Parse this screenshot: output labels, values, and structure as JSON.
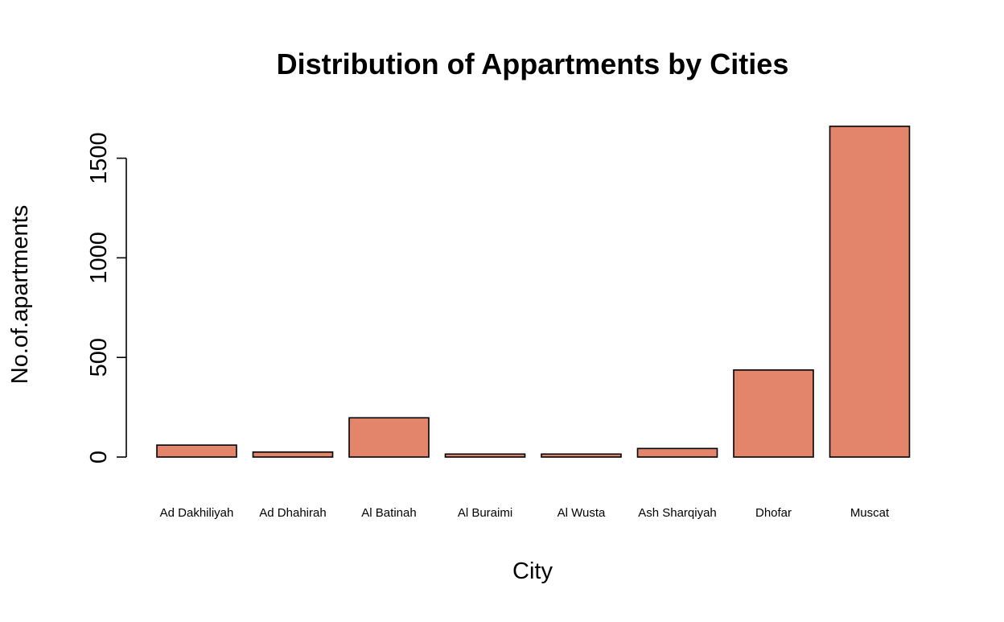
{
  "chart_data": {
    "type": "bar",
    "title": "Distribution of Appartments by Cities",
    "xlabel": "City",
    "ylabel": "No.of.apartments",
    "categories": [
      "Ad Dakhiliyah",
      "Ad Dhahirah",
      "Al Batinah",
      "Al Buraimi",
      "Al Wusta",
      "Ash Sharqiyah",
      "Dhofar",
      "Muscat"
    ],
    "values": [
      60,
      25,
      197,
      15,
      15,
      43,
      437,
      1660
    ],
    "ylim": [
      0,
      1660
    ],
    "yticks": [
      0,
      500,
      1000,
      1500
    ],
    "grid": false,
    "legend": "none",
    "bar_color": "#E2856A",
    "edge_color": "#000000"
  }
}
